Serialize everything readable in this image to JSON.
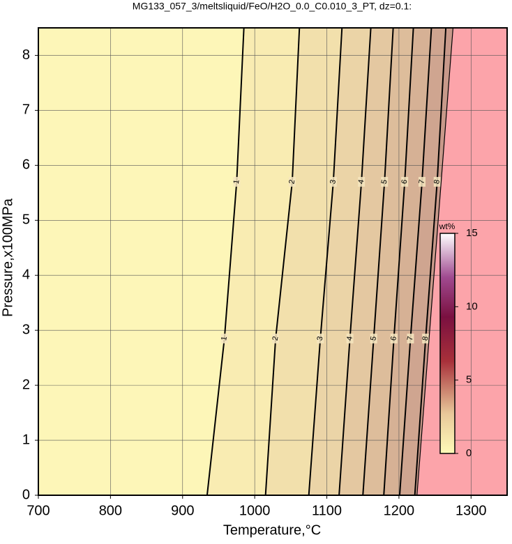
{
  "chart_data": {
    "type": "contour",
    "title": "MG133_057_3/meltsliquid/FeO/H2O_0.0_C0.010_3_PT, dz=0.1:",
    "x_label": "Temperature,°C",
    "y_label": "Pressure,x100MPa",
    "xlim": [
      700,
      1350
    ],
    "ylim": [
      0,
      8.5
    ],
    "xticks": [
      700,
      800,
      900,
      1000,
      1100,
      1200,
      1300
    ],
    "yticks": [
      0,
      1,
      2,
      3,
      4,
      5,
      6,
      7,
      8
    ],
    "grid": true,
    "contours": [
      {
        "level": 1,
        "T": [
          934,
          958,
          975,
          985
        ],
        "P": [
          0,
          2.85,
          5.7,
          8.5
        ]
      },
      {
        "level": 2,
        "T": [
          1015,
          1029,
          1052,
          1062
        ],
        "P": [
          0,
          2.85,
          5.7,
          8.5
        ]
      },
      {
        "level": 3,
        "T": [
          1075,
          1091,
          1109,
          1121
        ],
        "P": [
          0,
          2.85,
          5.7,
          8.5
        ]
      },
      {
        "level": 4,
        "T": [
          1117,
          1132,
          1148,
          1161
        ],
        "P": [
          0,
          2.85,
          5.7,
          8.5
        ]
      },
      {
        "level": 5,
        "T": [
          1150,
          1165,
          1180,
          1192
        ],
        "P": [
          0,
          2.85,
          5.7,
          8.5
        ]
      },
      {
        "level": 6,
        "T": [
          1179,
          1193,
          1208,
          1220
        ],
        "P": [
          0,
          2.85,
          5.7,
          8.5
        ]
      },
      {
        "level": 7,
        "T": [
          1201,
          1216,
          1232,
          1245
        ],
        "P": [
          0,
          2.85,
          5.7,
          8.5
        ]
      },
      {
        "level": 8,
        "T": [
          1222,
          1237,
          1253,
          1265
        ],
        "P": [
          0,
          2.85,
          5.7,
          8.5
        ]
      }
    ],
    "boundary": {
      "T": [
        1225,
        1275
      ],
      "P": [
        0,
        8.5
      ]
    },
    "colorbar": {
      "label": "wt%",
      "lim": [
        0,
        15
      ],
      "ticks": [
        0,
        5,
        10,
        15
      ]
    }
  }
}
